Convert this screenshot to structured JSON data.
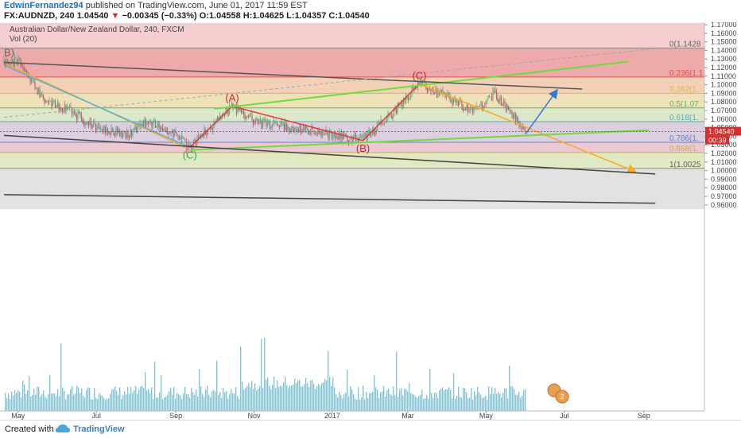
{
  "header": {
    "author": "EdwinFernandez94",
    "published": "published on TradingView.com, June 01, 2017 11:59 EST",
    "symbol": "FX:AUDNZD, 240",
    "last": "1.04540",
    "change_arrow": "▼",
    "change": "−0.00345 (−0.33%)",
    "ohlc": "O:1.04558 H:1.04625 L:1.04357 C:1.04540"
  },
  "chart": {
    "title": "Australian Dollar/New Zealand Dollar, 240, FXCM",
    "volume_label": "Vol (20)",
    "price_tag": "1.04540",
    "countdown_tag": "00:39",
    "y_ticks": [
      "1.17000",
      "1.16000",
      "1.15000",
      "1.14000",
      "1.13000",
      "1.12000",
      "1.11000",
      "1.10000",
      "1.09000",
      "1.08000",
      "1.07000",
      "1.06000",
      "1.05000",
      "1.04000",
      "1.03000",
      "1.02000",
      "1.01000",
      "1.00000",
      "0.99000",
      "0.98000",
      "0.97000",
      "0.96000"
    ],
    "x_ticks": [
      "May",
      "Jul",
      "Sep",
      "Nov",
      "2017",
      "Mar",
      "May",
      "Jul",
      "Sep"
    ],
    "fib_labels": [
      "0(1.1428",
      "0.236(1.1",
      "0.382(1.",
      "0.5(1.07",
      "0.618(1.",
      "0.786(1.",
      "0.868(1.",
      "1(1.0025"
    ],
    "wave_labels": [
      "B)",
      "(A)",
      "(B)",
      "(C)",
      "(C)"
    ],
    "badge_number": "2"
  },
  "chart_data": {
    "type": "candlestick",
    "title": "Australian Dollar/New Zealand Dollar, 240, FXCM",
    "symbol": "FX:AUDNZD",
    "interval": "240",
    "ylim": [
      0.955,
      1.172
    ],
    "x_ticks": [
      "May",
      "Jul",
      "Sep",
      "Nov",
      "2017",
      "Mar",
      "May",
      "Jul",
      "Sep"
    ],
    "last_price": 1.0454,
    "price_path": [
      {
        "x": "2016-04-20",
        "y": 1.125
      },
      {
        "x": "2016-05-01",
        "y": 1.128
      },
      {
        "x": "2016-05-20",
        "y": 1.085
      },
      {
        "x": "2016-06-10",
        "y": 1.07
      },
      {
        "x": "2016-07-01",
        "y": 1.05
      },
      {
        "x": "2016-07-25",
        "y": 1.042
      },
      {
        "x": "2016-08-10",
        "y": 1.058
      },
      {
        "x": "2016-08-28",
        "y": 1.045
      },
      {
        "x": "2016-09-12",
        "y": 1.027
      },
      {
        "x": "2016-10-15",
        "y": 1.075
      },
      {
        "x": "2016-11-05",
        "y": 1.055
      },
      {
        "x": "2016-12-01",
        "y": 1.05
      },
      {
        "x": "2016-12-25",
        "y": 1.043
      },
      {
        "x": "2017-01-25",
        "y": 1.036
      },
      {
        "x": "2017-02-20",
        "y": 1.07
      },
      {
        "x": "2017-03-10",
        "y": 1.101
      },
      {
        "x": "2017-04-01",
        "y": 1.085
      },
      {
        "x": "2017-04-20",
        "y": 1.07
      },
      {
        "x": "2017-05-08",
        "y": 1.09
      },
      {
        "x": "2017-05-20",
        "y": 1.068
      },
      {
        "x": "2017-06-01",
        "y": 1.0454
      }
    ],
    "fib_levels": [
      {
        "ratio": "0",
        "price": 1.1428,
        "color": "#8a8a8a"
      },
      {
        "ratio": "0.236",
        "price": 1.109,
        "color": "#d9534f"
      },
      {
        "ratio": "0.382",
        "price": 1.09,
        "color": "#d6b656"
      },
      {
        "ratio": "0.5",
        "price": 1.073,
        "color": "#5cb85c"
      },
      {
        "ratio": "0.618",
        "price": 1.057,
        "color": "#5ba8b0"
      },
      {
        "ratio": "0.786",
        "price": 1.033,
        "color": "#6b7fb8"
      },
      {
        "ratio": "0.868",
        "price": 1.021,
        "color": "#c9b04a"
      },
      {
        "ratio": "1",
        "price": 1.0025,
        "color": "#8a8a8a"
      }
    ],
    "fib_zones": [
      {
        "top": 1.172,
        "bottom": 1.1428,
        "color": "#f5cfcf"
      },
      {
        "top": 1.1428,
        "bottom": 1.109,
        "color": "#eeaaaa"
      },
      {
        "top": 1.109,
        "bottom": 1.09,
        "color": "#f3d1b8"
      },
      {
        "top": 1.09,
        "bottom": 1.073,
        "color": "#efe2bb"
      },
      {
        "top": 1.073,
        "bottom": 1.057,
        "color": "#dde7c9"
      },
      {
        "top": 1.057,
        "bottom": 1.033,
        "color": "#dccfe0"
      },
      {
        "top": 1.033,
        "bottom": 1.021,
        "color": "#ecc9d2"
      },
      {
        "top": 1.021,
        "bottom": 1.0025,
        "color": "#dfe9c2"
      },
      {
        "top": 1.0025,
        "bottom": 0.955,
        "color": "#e2e2e2"
      }
    ],
    "drawings": [
      {
        "kind": "wave",
        "color": "#e53935",
        "points": [
          {
            "x": "2016-09-12",
            "y": 1.027
          },
          {
            "x": "2016-10-15",
            "y": 1.075
          },
          {
            "x": "2017-01-25",
            "y": 1.035
          },
          {
            "x": "2017-03-10",
            "y": 1.101
          }
        ]
      },
      {
        "kind": "trend",
        "color": "#ffa726",
        "points": [
          {
            "x": "2016-04-22",
            "y": 1.124
          },
          {
            "x": "2016-09-10",
            "y": 1.026
          }
        ]
      },
      {
        "kind": "trend",
        "color": "#4fb3e0",
        "points": [
          {
            "x": "2016-04-20",
            "y": 1.123
          },
          {
            "x": "2016-09-12",
            "y": 1.027
          }
        ]
      },
      {
        "kind": "trend",
        "color": "#ffa726",
        "points": [
          {
            "x": "2017-03-10",
            "y": 1.101
          },
          {
            "x": "2017-08-25",
            "y": 0.999
          }
        ]
      },
      {
        "kind": "projection",
        "color": "#3a78c8",
        "points": [
          {
            "x": "2017-06-01",
            "y": 1.043
          },
          {
            "x": "2017-06-25",
            "y": 1.093
          }
        ]
      },
      {
        "kind": "channel",
        "color": "#6edc3c",
        "points": [
          {
            "x": "2016-10-01",
            "y": 1.072
          },
          {
            "x": "2017-08-20",
            "y": 1.127
          }
        ]
      },
      {
        "kind": "channel",
        "color": "#6edc3c",
        "points": [
          {
            "x": "2016-09-12",
            "y": 1.024
          },
          {
            "x": "2017-09-05",
            "y": 1.047
          }
        ]
      },
      {
        "kind": "trend",
        "color": "#555555",
        "points": [
          {
            "x": "2016-04-20",
            "y": 1.126
          },
          {
            "x": "2017-07-15",
            "y": 1.095
          }
        ]
      },
      {
        "kind": "trend",
        "color": "#444444",
        "points": [
          {
            "x": "2016-04-20",
            "y": 1.041
          },
          {
            "x": "2017-09-10",
            "y": 0.996
          }
        ]
      },
      {
        "kind": "trend",
        "color": "#444444",
        "points": [
          {
            "x": "2016-04-20",
            "y": 0.972
          },
          {
            "x": "2017-09-10",
            "y": 0.962
          }
        ]
      },
      {
        "kind": "dashed",
        "color": "#a8a8a8",
        "points": [
          {
            "x": "2016-04-20",
            "y": 1.062
          },
          {
            "x": "2017-09-10",
            "y": 1.142
          }
        ]
      }
    ],
    "wave_points": [
      {
        "label": "B)",
        "x": "2016-04-20",
        "y": 1.128,
        "color": "#666666"
      },
      {
        "label": "(A)",
        "x": "2016-10-15",
        "y": 1.075,
        "color": "#c62828"
      },
      {
        "label": "(B)",
        "x": "2017-01-25",
        "y": 1.035,
        "color": "#c62828"
      },
      {
        "label": "(C)",
        "x": "2017-03-10",
        "y": 1.101,
        "color": "#c62828"
      },
      {
        "label": "(C)",
        "x": "2016-09-12",
        "y": 1.027,
        "color": "#3aa35a"
      }
    ],
    "volume_pane": true
  }
}
